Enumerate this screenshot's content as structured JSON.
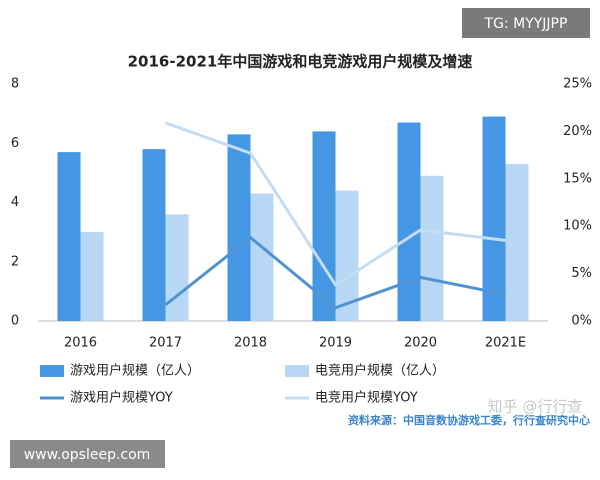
{
  "chart_data": {
    "type": "bar",
    "title": "2016-2021年中国游戏和电竞游戏用户规模及增速",
    "categories": [
      "2016",
      "2017",
      "2018",
      "2019",
      "2020",
      "2021E"
    ],
    "series": [
      {
        "name": "游戏用户规模（亿人）",
        "color": "#4597e3",
        "values": [
          5.7,
          5.8,
          6.3,
          6.4,
          6.7,
          6.9
        ]
      },
      {
        "name": "电竞用户规模（亿人）",
        "color": "#b7d7f4",
        "values": [
          3.0,
          3.6,
          4.3,
          4.4,
          4.9,
          5.3
        ]
      },
      {
        "name": "游戏用户规模YOY",
        "color": "#4f92d2",
        "type": "line",
        "axis": "y2",
        "values": [
          null,
          1.7,
          8.8,
          1.4,
          4.6,
          2.8
        ]
      },
      {
        "name": "电竞用户规模YOY",
        "color": "#c3dcf2",
        "type": "line",
        "axis": "y2",
        "values": [
          null,
          20.9,
          17.7,
          3.8,
          9.6,
          8.5
        ]
      }
    ],
    "ylim": [
      0,
      8
    ],
    "yticks": [
      0,
      2,
      4,
      6,
      8
    ],
    "y2lim": [
      0,
      25
    ],
    "y2ticks": [
      {
        "value": 0,
        "label": "0%"
      },
      {
        "value": 5,
        "label": "5%"
      },
      {
        "value": 10,
        "label": "10%"
      },
      {
        "value": 15,
        "label": "15%"
      },
      {
        "value": 20,
        "label": "20%"
      },
      {
        "value": 25,
        "label": "25%"
      }
    ],
    "grid": false,
    "legend": "bottom",
    "source": "资料来源：中国音数协游戏工委，行行查研究中心"
  },
  "watermarks": [
    "TG: MYYJJPP",
    "www.opsleep.com",
    "知乎 @行行查"
  ]
}
